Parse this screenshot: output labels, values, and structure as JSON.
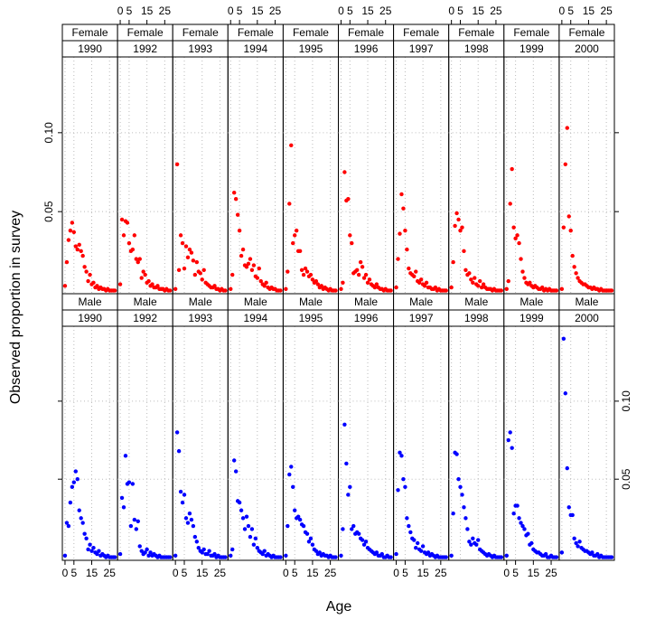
{
  "chart_data": {
    "type": "scatter",
    "xlabel": "Age",
    "ylabel": "Observed proportion in survey",
    "x": [
      0,
      1,
      2,
      3,
      4,
      5,
      6,
      7,
      8,
      9,
      10,
      11,
      12,
      13,
      14,
      15,
      16,
      17,
      18,
      19,
      20,
      21,
      22,
      23,
      24,
      25,
      26,
      27,
      28
    ],
    "xlim": [
      -1.5,
      29.5
    ],
    "ylim": [
      -0.002,
      0.148
    ],
    "xticks": [
      0,
      5,
      15,
      25
    ],
    "yticks": [
      0.05,
      {
        "value": 0.1,
        "label": "0.10"
      }
    ],
    "grid": true,
    "panels": [
      {
        "sex": "Female",
        "year": "1990",
        "color": "#ff0000",
        "values": [
          0.003,
          0.018,
          0.032,
          0.038,
          0.043,
          0.037,
          0.028,
          0.026,
          0.029,
          0.025,
          0.022,
          0.015,
          0.012,
          0.006,
          0.01,
          0.004,
          0.005,
          0.002,
          0.003,
          0.001,
          0.002,
          0.001,
          0.001,
          0,
          0.001,
          0,
          0,
          0,
          0
        ]
      },
      {
        "sex": "Female",
        "year": "1992",
        "color": "#ff0000",
        "values": [
          0.004,
          0.045,
          0.035,
          0.044,
          0.043,
          0.03,
          0.025,
          0.026,
          0.035,
          0.02,
          0.018,
          0.02,
          0.008,
          0.012,
          0.01,
          0.005,
          0.006,
          0.003,
          0.004,
          0.002,
          0.002,
          0.003,
          0.001,
          0.001,
          0.001,
          0,
          0.001,
          0,
          0
        ]
      },
      {
        "sex": "Female",
        "year": "1993",
        "color": "#ff0000",
        "values": [
          0.001,
          0.08,
          0.013,
          0.035,
          0.03,
          0.014,
          0.028,
          0.021,
          0.026,
          0.024,
          0.019,
          0.01,
          0.018,
          0.012,
          0.011,
          0.007,
          0.013,
          0.005,
          0.004,
          0.003,
          0.002,
          0.002,
          0.003,
          0.001,
          0.001,
          0,
          0.001,
          0,
          0
        ]
      },
      {
        "sex": "Female",
        "year": "1994",
        "color": "#ff0000",
        "values": [
          0.001,
          0.01,
          0.062,
          0.058,
          0.048,
          0.038,
          0.022,
          0.026,
          0.016,
          0.015,
          0.017,
          0.02,
          0.013,
          0.016,
          0.009,
          0.008,
          0.014,
          0.006,
          0.004,
          0.003,
          0.005,
          0.002,
          0.001,
          0.002,
          0.001,
          0.001,
          0,
          0,
          0
        ]
      },
      {
        "sex": "Female",
        "year": "1995",
        "color": "#ff0000",
        "values": [
          0.001,
          0.012,
          0.055,
          0.092,
          0.03,
          0.035,
          0.038,
          0.025,
          0.025,
          0.013,
          0.01,
          0.014,
          0.012,
          0.009,
          0.01,
          0.007,
          0.005,
          0.006,
          0.004,
          0.002,
          0.003,
          0.001,
          0.002,
          0.001,
          0,
          0.001,
          0,
          0,
          0
        ]
      },
      {
        "sex": "Female",
        "year": "1996",
        "color": "#ff0000",
        "values": [
          0.001,
          0.005,
          0.075,
          0.057,
          0.058,
          0.035,
          0.03,
          0.011,
          0.012,
          0.013,
          0.01,
          0.018,
          0.015,
          0.008,
          0.01,
          0.005,
          0.007,
          0.004,
          0.003,
          0.002,
          0.004,
          0.002,
          0.001,
          0.001,
          0,
          0.001,
          0,
          0,
          0
        ]
      },
      {
        "sex": "Female",
        "year": "1997",
        "color": "#ff0000",
        "values": [
          0.002,
          0.02,
          0.036,
          0.061,
          0.052,
          0.038,
          0.026,
          0.014,
          0.011,
          0.01,
          0.009,
          0.012,
          0.006,
          0.005,
          0.007,
          0.004,
          0.003,
          0.005,
          0.002,
          0.002,
          0.001,
          0.001,
          0.002,
          0,
          0.001,
          0,
          0,
          0,
          0
        ]
      },
      {
        "sex": "Female",
        "year": "1998",
        "color": "#ff0000",
        "values": [
          0.002,
          0.018,
          0.041,
          0.049,
          0.045,
          0.038,
          0.04,
          0.025,
          0.013,
          0.01,
          0.011,
          0.007,
          0.005,
          0.008,
          0.004,
          0.003,
          0.006,
          0.002,
          0.004,
          0.002,
          0.001,
          0.001,
          0.001,
          0,
          0.001,
          0,
          0,
          0,
          0
        ]
      },
      {
        "sex": "Female",
        "year": "1999",
        "color": "#ff0000",
        "values": [
          0.001,
          0.006,
          0.055,
          0.077,
          0.04,
          0.033,
          0.035,
          0.03,
          0.02,
          0.012,
          0.008,
          0.005,
          0.004,
          0.005,
          0.003,
          0.002,
          0.003,
          0.002,
          0.001,
          0.001,
          0.002,
          0,
          0.001,
          0,
          0.001,
          0,
          0,
          0,
          0
        ]
      },
      {
        "sex": "Female",
        "year": "2000",
        "color": "#ff0000",
        "values": [
          0.001,
          0.04,
          0.08,
          0.103,
          0.047,
          0.038,
          0.022,
          0.015,
          0.011,
          0.008,
          0.006,
          0.005,
          0.004,
          0.004,
          0.003,
          0.002,
          0.002,
          0.001,
          0.002,
          0.001,
          0.001,
          0,
          0.001,
          0,
          0,
          0,
          0,
          0,
          0
        ]
      },
      {
        "sex": "Male",
        "year": "1990",
        "color": "#0000ff",
        "values": [
          0.001,
          0.022,
          0.02,
          0.035,
          0.045,
          0.048,
          0.055,
          0.05,
          0.03,
          0.025,
          0.022,
          0.015,
          0.012,
          0.005,
          0.008,
          0.004,
          0.006,
          0.003,
          0.002,
          0.004,
          0.001,
          0.002,
          0.001,
          0,
          0.001,
          0,
          0,
          0,
          0
        ]
      },
      {
        "sex": "Male",
        "year": "1992",
        "color": "#0000ff",
        "values": [
          0.002,
          0.038,
          0.032,
          0.065,
          0.047,
          0.048,
          0.02,
          0.047,
          0.024,
          0.018,
          0.023,
          0.007,
          0.004,
          0.002,
          0.003,
          0.005,
          0.001,
          0.003,
          0.001,
          0.002,
          0.001,
          0,
          0.001,
          0,
          0,
          0,
          0,
          0,
          0
        ]
      },
      {
        "sex": "Male",
        "year": "1993",
        "color": "#0000ff",
        "values": [
          0.001,
          0.08,
          0.068,
          0.042,
          0.035,
          0.04,
          0.025,
          0.022,
          0.028,
          0.024,
          0.02,
          0.013,
          0.01,
          0.006,
          0.004,
          0.003,
          0.005,
          0.002,
          0.002,
          0.004,
          0.001,
          0.001,
          0.002,
          0,
          0.001,
          0,
          0,
          0,
          0
        ]
      },
      {
        "sex": "Male",
        "year": "1994",
        "color": "#0000ff",
        "values": [
          0.001,
          0.005,
          0.062,
          0.055,
          0.036,
          0.035,
          0.03,
          0.025,
          0.018,
          0.026,
          0.02,
          0.013,
          0.018,
          0.008,
          0.012,
          0.006,
          0.004,
          0.003,
          0.002,
          0.004,
          0.001,
          0.002,
          0.001,
          0,
          0.001,
          0,
          0,
          0,
          0
        ]
      },
      {
        "sex": "Male",
        "year": "1995",
        "color": "#0000ff",
        "values": [
          0.001,
          0.02,
          0.053,
          0.058,
          0.045,
          0.03,
          0.025,
          0.026,
          0.024,
          0.021,
          0.02,
          0.016,
          0.015,
          0.01,
          0.012,
          0.008,
          0.005,
          0.004,
          0.002,
          0.003,
          0.001,
          0.002,
          0.001,
          0.001,
          0,
          0.001,
          0,
          0,
          0
        ]
      },
      {
        "sex": "Male",
        "year": "1996",
        "color": "#0000ff",
        "values": [
          0.001,
          0.018,
          0.085,
          0.06,
          0.04,
          0.045,
          0.018,
          0.02,
          0.015,
          0.016,
          0.015,
          0.012,
          0.011,
          0.008,
          0.01,
          0.006,
          0.005,
          0.004,
          0.003,
          0.002,
          0.003,
          0.001,
          0.001,
          0.002,
          0,
          0,
          0.001,
          0,
          0
        ]
      },
      {
        "sex": "Male",
        "year": "1997",
        "color": "#0000ff",
        "values": [
          0.002,
          0.043,
          0.067,
          0.065,
          0.05,
          0.045,
          0.025,
          0.02,
          0.016,
          0.012,
          0.011,
          0.006,
          0.009,
          0.005,
          0.004,
          0.007,
          0.003,
          0.002,
          0.003,
          0.001,
          0.002,
          0.001,
          0,
          0.001,
          0,
          0,
          0,
          0,
          0
        ]
      },
      {
        "sex": "Male",
        "year": "1998",
        "color": "#0000ff",
        "values": [
          0.001,
          0.028,
          0.067,
          0.066,
          0.05,
          0.045,
          0.04,
          0.032,
          0.025,
          0.018,
          0.01,
          0.008,
          0.012,
          0.009,
          0.008,
          0.011,
          0.005,
          0.004,
          0.003,
          0.002,
          0.001,
          0.002,
          0.001,
          0,
          0.001,
          0,
          0,
          0,
          0
        ]
      },
      {
        "sex": "Male",
        "year": "1999",
        "color": "#0000ff",
        "values": [
          0.001,
          0.075,
          0.08,
          0.07,
          0.028,
          0.033,
          0.033,
          0.025,
          0.022,
          0.02,
          0.018,
          0.014,
          0.015,
          0.008,
          0.009,
          0.005,
          0.004,
          0.003,
          0.003,
          0.002,
          0.001,
          0.001,
          0.002,
          0,
          0,
          0.001,
          0,
          0,
          0
        ]
      },
      {
        "sex": "Male",
        "year": "2000",
        "color": "#0000ff",
        "values": [
          0.003,
          0.14,
          0.105,
          0.057,
          0.032,
          0.027,
          0.027,
          0.012,
          0.009,
          0.007,
          0.01,
          0.006,
          0.005,
          0.004,
          0.004,
          0.003,
          0.002,
          0.003,
          0.001,
          0.001,
          0.002,
          0,
          0.001,
          0,
          0,
          0,
          0,
          0,
          0
        ]
      }
    ]
  }
}
